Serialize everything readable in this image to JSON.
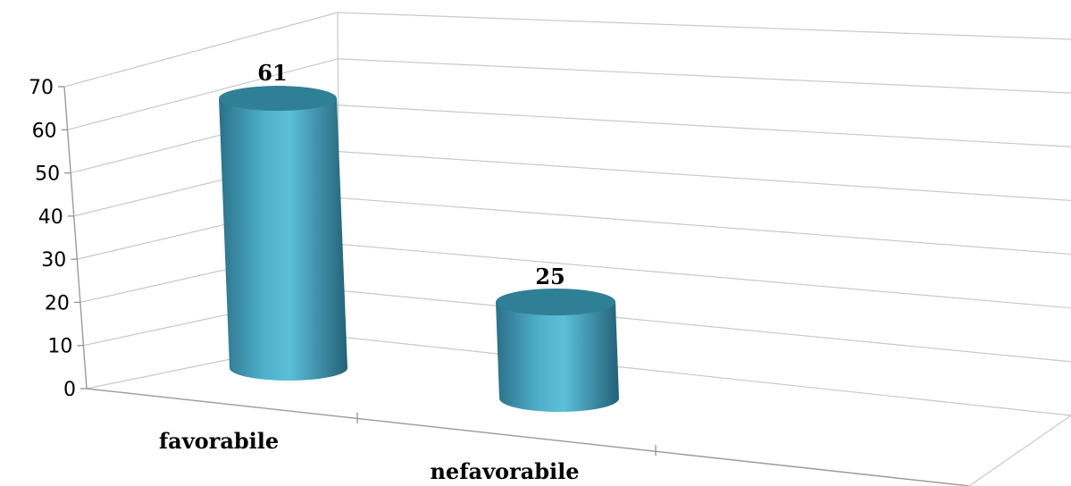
{
  "chart_data": {
    "type": "bar",
    "style": "3d-cylinder",
    "categories": [
      "favorabile",
      "nefavorabile"
    ],
    "values": [
      61,
      25
    ],
    "ylim": [
      0,
      70
    ],
    "yticks": [
      0,
      10,
      20,
      30,
      40,
      50,
      60,
      70
    ],
    "grid": true,
    "legend": "none",
    "bar_color": "#4aa6c2",
    "bar_top_color": "#2f7f97"
  }
}
